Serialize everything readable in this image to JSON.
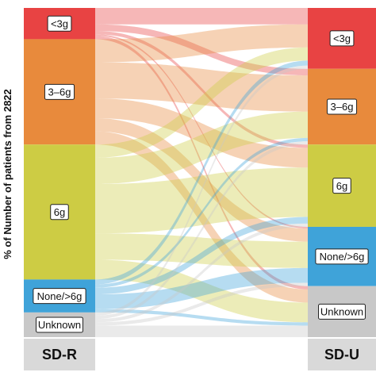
{
  "chart_data": {
    "type": "sankey",
    "ylabel": "% of Number of patients from 2822",
    "left_axis": "SD-R",
    "right_axis": "SD-U",
    "categories": [
      "<3g",
      "3–6g",
      "6g",
      "None/>6g",
      "Unknown"
    ],
    "colors": [
      "#e84343",
      "#e88a3c",
      "#cdcc44",
      "#3fa3d9",
      "#c8c8c8"
    ],
    "left_values": [
      9.5,
      32.0,
      41.0,
      10.0,
      7.5
    ],
    "right_values": [
      18.5,
      23.0,
      25.0,
      18.0,
      15.5
    ],
    "flows": [
      {
        "from": "<3g",
        "to": "<3g",
        "value": 5.0
      },
      {
        "from": "<3g",
        "to": "3–6g",
        "value": 2.0
      },
      {
        "from": "<3g",
        "to": "6g",
        "value": 1.0
      },
      {
        "from": "<3g",
        "to": "None/>6g",
        "value": 0.5
      },
      {
        "from": "<3g",
        "to": "Unknown",
        "value": 1.0
      },
      {
        "from": "3–6g",
        "to": "<3g",
        "value": 7.0
      },
      {
        "from": "3–6g",
        "to": "3–6g",
        "value": 11.0
      },
      {
        "from": "3–6g",
        "to": "6g",
        "value": 6.0
      },
      {
        "from": "3–6g",
        "to": "None/>6g",
        "value": 4.0
      },
      {
        "from": "3–6g",
        "to": "Unknown",
        "value": 4.0
      },
      {
        "from": "6g",
        "to": "<3g",
        "value": 4.0
      },
      {
        "from": "6g",
        "to": "3–6g",
        "value": 8.0
      },
      {
        "from": "6g",
        "to": "6g",
        "value": 15.0
      },
      {
        "from": "6g",
        "to": "None/>6g",
        "value": 8.0
      },
      {
        "from": "6g",
        "to": "Unknown",
        "value": 6.0
      },
      {
        "from": "None/>6g",
        "to": "<3g",
        "value": 1.5
      },
      {
        "from": "None/>6g",
        "to": "3–6g",
        "value": 1.0
      },
      {
        "from": "None/>6g",
        "to": "6g",
        "value": 2.0
      },
      {
        "from": "None/>6g",
        "to": "None/>6g",
        "value": 4.5
      },
      {
        "from": "None/>6g",
        "to": "Unknown",
        "value": 1.0
      },
      {
        "from": "Unknown",
        "to": "<3g",
        "value": 1.0
      },
      {
        "from": "Unknown",
        "to": "3–6g",
        "value": 1.0
      },
      {
        "from": "Unknown",
        "to": "6g",
        "value": 1.0
      },
      {
        "from": "Unknown",
        "to": "None/>6g",
        "value": 1.0
      },
      {
        "from": "Unknown",
        "to": "Unknown",
        "value": 3.5
      }
    ]
  }
}
